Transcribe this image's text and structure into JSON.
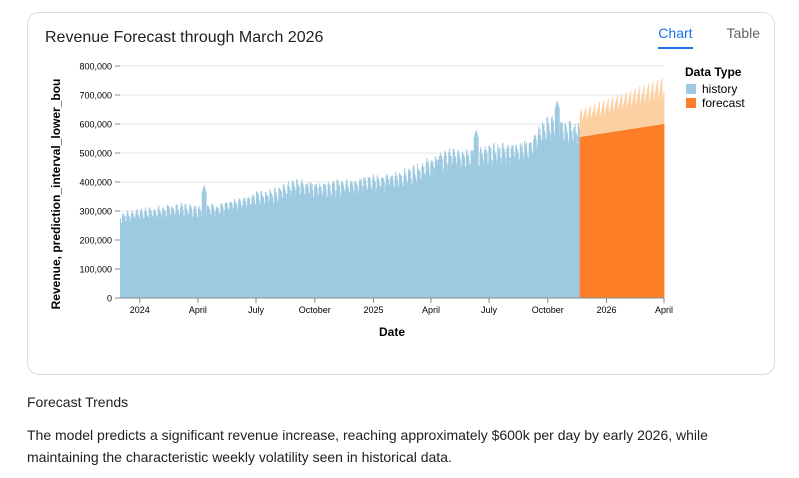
{
  "card": {
    "title": "Revenue Forecast through March 2026",
    "tabs": [
      {
        "label": "Chart",
        "active": true
      },
      {
        "label": "Table",
        "active": false
      }
    ]
  },
  "colors": {
    "history": "#9ecae1",
    "forecast": "#fd7f28",
    "interval": "#fdd0a2",
    "accent": "#1a73e8"
  },
  "chart_data": {
    "type": "area",
    "xlabel": "Date",
    "ylabel": "Revenue, prediction_interval_lower_bou",
    "ylim": [
      0,
      800000
    ],
    "y_ticks": [
      "0",
      "100,000",
      "200,000",
      "300,000",
      "400,000",
      "500,000",
      "600,000",
      "700,000",
      "800,000"
    ],
    "x_ticks": [
      "2024",
      "April",
      "July",
      "October",
      "2025",
      "April",
      "July",
      "October",
      "2026",
      "April"
    ],
    "legend": {
      "title": "Data Type",
      "position": "top-right",
      "entries": [
        "history",
        "forecast"
      ]
    },
    "grid": true,
    "series": [
      {
        "name": "history",
        "x_start": "2023-12-01",
        "x_end": "2025-11-19",
        "monthly_values": [
          {
            "month": "2023-12",
            "value": 280000
          },
          {
            "month": "2024-01",
            "value": 295000
          },
          {
            "month": "2024-02",
            "value": 300000
          },
          {
            "month": "2024-03",
            "value": 310000
          },
          {
            "month": "2024-04",
            "value": 305000
          },
          {
            "month": "2024-05",
            "value": 310000
          },
          {
            "month": "2024-06",
            "value": 325000
          },
          {
            "month": "2024-07",
            "value": 350000
          },
          {
            "month": "2024-08",
            "value": 360000
          },
          {
            "month": "2024-09",
            "value": 390000
          },
          {
            "month": "2024-10",
            "value": 380000
          },
          {
            "month": "2024-11",
            "value": 385000
          },
          {
            "month": "2024-12",
            "value": 395000
          },
          {
            "month": "2025-01",
            "value": 405000
          },
          {
            "month": "2025-02",
            "value": 410000
          },
          {
            "month": "2025-03",
            "value": 430000
          },
          {
            "month": "2025-04",
            "value": 460000
          },
          {
            "month": "2025-05",
            "value": 490000
          },
          {
            "month": "2025-06",
            "value": 495000
          },
          {
            "month": "2025-07",
            "value": 500000
          },
          {
            "month": "2025-08",
            "value": 510000
          },
          {
            "month": "2025-09",
            "value": 520000
          },
          {
            "month": "2025-10",
            "value": 600000
          },
          {
            "month": "2025-11",
            "value": 580000
          }
        ],
        "peaks": [
          {
            "date": "2024-04-10",
            "value": 390000
          },
          {
            "date": "2025-04-15",
            "value": 500000
          },
          {
            "date": "2025-06-10",
            "value": 580000
          },
          {
            "date": "2025-10-15",
            "value": 680000
          }
        ]
      },
      {
        "name": "forecast",
        "x_start": "2025-11-20",
        "x_end": "2026-03-31",
        "start_value": 555000,
        "end_value": 600000,
        "interval_upper_start": 650000,
        "interval_upper_end": 760000
      }
    ]
  },
  "summary": {
    "title": "Forecast Trends",
    "text": "The model predicts a significant revenue increase, reaching approximately $600k per day by early 2026, while maintaining the characteristic weekly volatility seen in historical data."
  }
}
